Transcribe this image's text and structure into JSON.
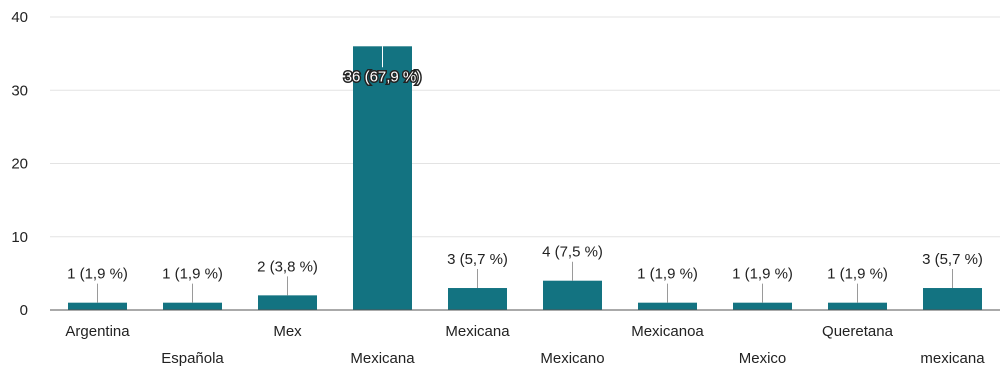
{
  "chart_data": {
    "type": "bar",
    "categories": [
      "Argentina",
      "Española",
      "Mex",
      "Mexicana",
      "Mexicana",
      "Mexicano",
      "Mexicanoa",
      "Mexico",
      "Queretana",
      "mexicana"
    ],
    "values": [
      1,
      1,
      2,
      36,
      3,
      4,
      1,
      1,
      1,
      3
    ],
    "data_labels": [
      "1 (1,9 %)",
      "1 (1,9 %)",
      "2 (3,8 %)",
      "36 (67,9 %)",
      "3 (5,7 %)",
      "4 (7,5 %)",
      "1 (1,9 %)",
      "1 (1,9 %)",
      "1 (1,9 %)",
      "3 (5,7 %)"
    ],
    "yticks": [
      "0",
      "10",
      "20",
      "30",
      "40"
    ],
    "ylim": [
      0,
      40
    ],
    "grid": true,
    "colors": {
      "bar": "#137381",
      "grid": "#e3e3e3",
      "axis": "#555555",
      "text": "#222222"
    }
  }
}
